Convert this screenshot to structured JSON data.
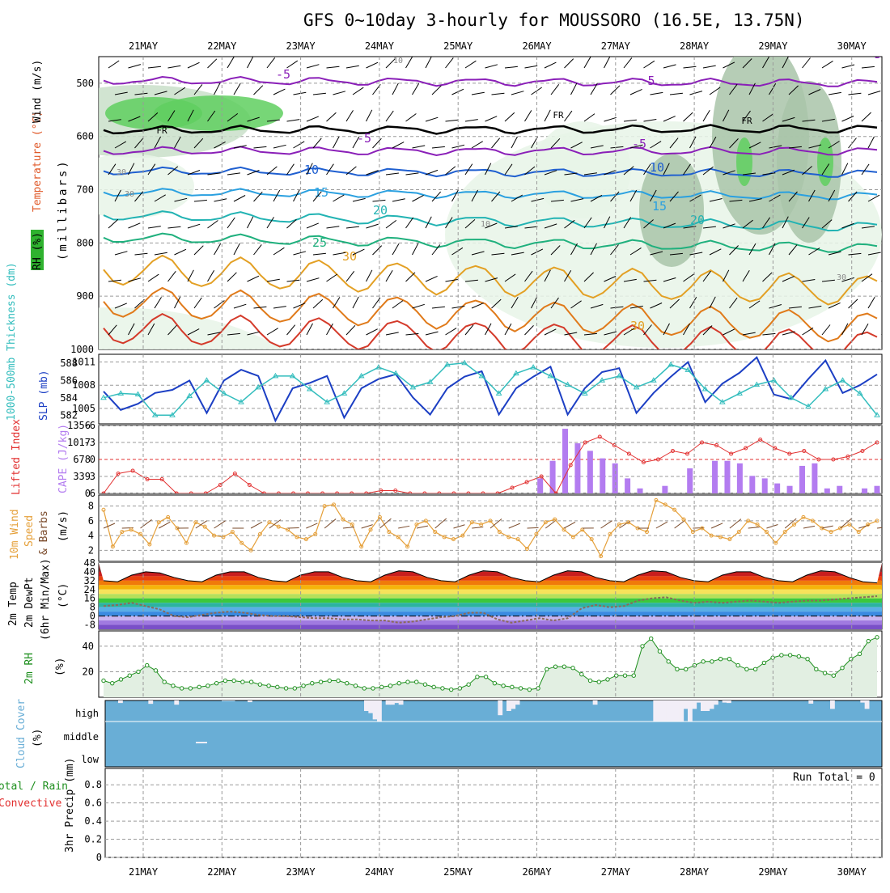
{
  "title": "GFS 0~10day 3-hourly for MOUSSORO (16.5E, 13.75N)",
  "dates": [
    "21MAY",
    "22MAY",
    "23MAY",
    "24MAY",
    "25MAY",
    "26MAY",
    "27MAY",
    "28MAY",
    "29MAY",
    "30MAY"
  ],
  "panel_labels": {
    "p1": {
      "rh": "RH (%)",
      "temp": "Temperature (°C)",
      "wind": "Wind (m/s)",
      "mb": "(millibars)"
    },
    "p2": {
      "thk": "1000-500mb Thickness (dm)",
      "slp": "SLP (mb)"
    },
    "p3": {
      "li": "Lifted Index",
      "cape": "CAPE (J/kg)"
    },
    "p4": {
      "a": "10m Wind",
      "b": "Speed",
      "c": "& Barbs",
      "d": "(m/s)"
    },
    "p5": {
      "a": "2m Temp",
      "b": "2m DewPt",
      "c": "(6hr Min/Max)",
      "d": "(°C)"
    },
    "p6": {
      "a": "2m RH",
      "b": "(%)"
    },
    "p7": {
      "a": "Cloud Cover",
      "b": "(%)"
    },
    "p8": {
      "a": "Total / Rain",
      "b": "Convective",
      "c": "3hr Precip (mm)",
      "run_total": "Run Total = 0"
    }
  },
  "colors": {
    "slp": "#1c3fc4",
    "thickness": "#33bdbd",
    "li": "#e23030",
    "cape": "#b37cf0",
    "wind_speed": "#e5a03a",
    "rh2m": "#1e8f1e",
    "cloud": "#69aed6",
    "temp_line": "#000000"
  },
  "chart_data": [
    {
      "type": "line",
      "name": "upper-air",
      "ylabel": "(millibars)",
      "y_ticks": [
        500,
        600,
        700,
        800,
        900,
        1000
      ],
      "ylim": [
        450,
        1000
      ],
      "isotherm_labels": [
        "-5",
        "-5",
        "-5",
        "5",
        "5",
        "FR",
        "FR",
        "FR",
        "10",
        "10",
        "15",
        "15",
        "20",
        "20",
        "25",
        "30",
        "30",
        "10",
        "10",
        "30",
        "30",
        "30"
      ],
      "isotherms": [
        {
          "t": -5,
          "color": "#8a1fb8",
          "p": [
            495,
            500
          ]
        },
        {
          "t": 0,
          "color": "#000000",
          "p": [
            588,
            586
          ]
        },
        {
          "t": 5,
          "color": "#8a1fb8",
          "p": [
            627,
            628
          ]
        },
        {
          "t": 10,
          "color": "#1f5fd0",
          "p": [
            665,
            670
          ]
        },
        {
          "t": 15,
          "color": "#2aa0e0",
          "p": [
            705,
            712
          ]
        },
        {
          "t": 20,
          "color": "#22b3b3",
          "p": [
            748,
            770
          ]
        },
        {
          "t": 25,
          "color": "#1fb07d",
          "p": [
            790,
            810
          ]
        },
        {
          "t": 30,
          "color": "#e3a024",
          "p": [
            850,
            890
          ]
        },
        {
          "t": 35,
          "color": "#e07a1a",
          "p": [
            910,
            960
          ]
        },
        {
          "t": 40,
          "color": "#d43a2a",
          "p": [
            960,
            995
          ]
        }
      ]
    },
    {
      "type": "line",
      "name": "slp-thickness",
      "series": [
        {
          "name": "SLP (mb)",
          "axis_ticks": [
            1005,
            1008,
            1011
          ],
          "values": [
            1007.2,
            1004.8,
            1005.6,
            1007.0,
            1007.4,
            1008.6,
            1004.4,
            1008.6,
            1010.0,
            1009.2,
            1003.4,
            1007.6,
            1008.3,
            1009.2,
            1003.8,
            1007.6,
            1008.8,
            1009.4,
            1006.4,
            1004.2,
            1007.6,
            1009.1,
            1009.8,
            1004.2,
            1007.6,
            1009.1,
            1010.4,
            1004.2,
            1007.6,
            1009.7,
            1010.2,
            1004.4,
            1007.0,
            1009.1,
            1011.0,
            1005.8,
            1008.2,
            1009.6,
            1011.6,
            1006.8,
            1006.2,
            1008.8,
            1011.2,
            1007.0,
            1008.0,
            1009.4
          ]
        },
        {
          "name": "1000-500mb Thickness (dm)",
          "axis_ticks": [
            582,
            584,
            586,
            588
          ],
          "values": [
            584,
            584.5,
            584.4,
            582,
            582,
            584.2,
            586,
            584.5,
            583.5,
            585.2,
            586.5,
            586.5,
            585,
            583.5,
            584.5,
            586.5,
            587.5,
            586.8,
            585.2,
            585.8,
            587.8,
            588,
            586.5,
            584.5,
            586.8,
            587.5,
            586.5,
            585.5,
            584.5,
            586,
            586.5,
            585.2,
            586,
            587.8,
            587.2,
            585,
            583.5,
            584.5,
            585.5,
            586,
            584,
            583,
            585,
            586,
            584.5,
            582
          ]
        }
      ]
    },
    {
      "type": "bar",
      "name": "li-cape",
      "series": [
        {
          "name": "Lifted Index",
          "axis_ticks": [
            -6,
            -3,
            0,
            3,
            6
          ],
          "values": [
            6,
            2.5,
            2,
            3.5,
            3.5,
            6,
            6,
            6,
            4.5,
            2.5,
            4.5,
            6,
            6,
            6,
            6,
            6,
            6,
            6,
            6,
            5.5,
            5.5,
            6,
            6,
            6,
            6,
            6,
            6,
            6,
            5,
            4,
            3,
            6,
            1,
            -3,
            -4,
            -2.5,
            -1,
            0.5,
            0,
            -1.5,
            -1,
            -3,
            -2.5,
            -1,
            -2,
            -3.5,
            -2,
            -1,
            -1.5,
            0,
            0,
            -0.5,
            -1.5,
            -3
          ]
        },
        {
          "name": "CAPE (J/kg)",
          "axis_ticks": [
            0,
            339,
            678,
            1017,
            1356
          ],
          "values": [
            0,
            0,
            0,
            0,
            0,
            0,
            0,
            0,
            0,
            0,
            0,
            0,
            0,
            0,
            0,
            0,
            0,
            0,
            0,
            0,
            0,
            0,
            0,
            0,
            0,
            0,
            0,
            0,
            0,
            0,
            0,
            0,
            0,
            0,
            0,
            300,
            650,
            1290,
            1000,
            850,
            700,
            600,
            300,
            100,
            0,
            150,
            0,
            500,
            0,
            650,
            650,
            600,
            350,
            300,
            200,
            150,
            550,
            600,
            100,
            150,
            0,
            100,
            150
          ]
        }
      ]
    },
    {
      "type": "line",
      "name": "10m-wind",
      "ylabel": "(m/s)",
      "y_ticks": [
        2,
        4,
        6,
        8
      ],
      "series": [
        {
          "name": "10m Wind Speed",
          "values": [
            7.5,
            2.5,
            4.5,
            4.8,
            4.2,
            2.8,
            5.8,
            6.5,
            5.0,
            3.0,
            5.8,
            5.2,
            4.0,
            3.8,
            4.5,
            3.0,
            2.0,
            4.2,
            5.8,
            5.2,
            4.8,
            3.8,
            3.5,
            4.2,
            8.0,
            8.2,
            6.2,
            5.5,
            2.5,
            4.8,
            6.5,
            4.5,
            3.8,
            2.5,
            5.5,
            6.0,
            4.5,
            3.8,
            3.5,
            4.0,
            5.8,
            5.5,
            6.0,
            4.5,
            3.8,
            3.5,
            2.2,
            4.2,
            5.8,
            6.2,
            4.8,
            3.8,
            4.8,
            3.5,
            1.2,
            4.2,
            5.5,
            5.8,
            5.0,
            4.5,
            8.8,
            8.2,
            7.5,
            6.2,
            4.5,
            5.0,
            4.0,
            3.8,
            3.5,
            4.5,
            6.0,
            5.5,
            4.5,
            3.0,
            4.5,
            5.5,
            6.5,
            6.0,
            5.0,
            4.5,
            5.0,
            5.5,
            4.5,
            5.5,
            6.0
          ]
        }
      ]
    },
    {
      "type": "area",
      "name": "2m-temp",
      "ylabel": "(°C)",
      "y_ticks": [
        -8,
        0,
        8,
        16,
        24,
        32,
        40,
        48
      ],
      "series": [
        {
          "name": "2m Temp",
          "values": [
            32,
            31,
            37,
            40,
            39,
            35,
            32,
            31,
            37,
            40,
            40,
            35,
            32,
            31,
            37,
            40,
            40,
            35,
            32,
            31,
            37,
            41,
            40,
            35,
            32,
            31,
            37,
            41,
            40,
            35,
            32,
            31,
            37,
            41,
            40,
            35,
            32,
            31,
            37,
            41,
            40,
            35,
            32,
            31,
            37,
            40,
            40,
            35,
            32,
            31,
            37,
            41,
            40,
            35,
            31,
            30
          ]
        },
        {
          "name": "2m DewPt",
          "values": [
            9,
            10,
            12,
            9,
            6,
            0,
            -1,
            1,
            3,
            4,
            3,
            1,
            0,
            0,
            -1,
            -2,
            -2,
            -3,
            -3,
            -4,
            -4,
            -6,
            -5,
            -3,
            -1,
            0,
            3,
            3,
            -3,
            -6,
            -4,
            -2,
            -4,
            -2,
            7,
            10,
            8,
            9,
            14,
            16,
            17,
            14,
            12,
            13,
            12,
            13,
            14,
            13,
            12,
            13,
            14,
            14,
            15,
            16,
            17,
            18
          ]
        }
      ]
    },
    {
      "type": "area",
      "name": "2m-rh",
      "ylabel": "(%)",
      "y_ticks": [
        20,
        40
      ],
      "series": [
        {
          "name": "2m RH",
          "values": [
            13,
            11,
            14,
            17,
            20,
            25,
            21,
            12,
            9,
            7,
            7,
            8,
            9,
            11,
            13,
            13,
            12,
            12,
            10,
            9,
            8,
            7,
            7,
            9,
            11,
            12,
            13,
            13,
            11,
            9,
            7,
            7,
            8,
            9,
            11,
            12,
            12,
            10,
            8,
            7,
            6,
            7,
            10,
            16,
            16,
            11,
            9,
            8,
            7,
            6,
            7,
            22,
            24,
            24,
            23,
            18,
            13,
            12,
            14,
            17,
            17,
            17,
            40,
            46,
            36,
            28,
            22,
            22,
            25,
            28,
            28,
            30,
            30,
            25,
            22,
            22,
            27,
            31,
            33,
            33,
            32,
            30,
            22,
            19,
            17,
            23,
            30,
            34,
            44,
            47
          ]
        }
      ]
    },
    {
      "type": "bar",
      "name": "cloud-cover",
      "categories": [
        "high",
        "middle",
        "low"
      ],
      "high": [
        0,
        0,
        0,
        12,
        0,
        0,
        0,
        0,
        0,
        0,
        16,
        0,
        0,
        0,
        0,
        0,
        20,
        0,
        0,
        0,
        0,
        0,
        0,
        0,
        0,
        0,
        0,
        2,
        2,
        2,
        0,
        0,
        0,
        8,
        0,
        0,
        0,
        0,
        0,
        0,
        0,
        0,
        0,
        0,
        0,
        0,
        0,
        0,
        0,
        0,
        0,
        0,
        0,
        0,
        0,
        0,
        0,
        0,
        0,
        0,
        50,
        60,
        90,
        100,
        0,
        20,
        20,
        12,
        20,
        0,
        0,
        0,
        0,
        0,
        0,
        0,
        0,
        0,
        0,
        0,
        0,
        0,
        0,
        0,
        0,
        0,
        0,
        0,
        0,
        0,
        0,
        70,
        0,
        50,
        40,
        20,
        0,
        0,
        0,
        0,
        0,
        0,
        0,
        0,
        0,
        0,
        0,
        0,
        0,
        0,
        0,
        0,
        0,
        20,
        0,
        0,
        0,
        0,
        0,
        0,
        0,
        0,
        0,
        0,
        0,
        0,
        0,
        100,
        100,
        100,
        100,
        100,
        100,
        100,
        40,
        100,
        40,
        10,
        50,
        50,
        40,
        20,
        0,
        10,
        12,
        0,
        0,
        0,
        0,
        0,
        0,
        0,
        0,
        0,
        0,
        0,
        0,
        0,
        0,
        0,
        0,
        0,
        0,
        15,
        0,
        0,
        0,
        0,
        40,
        0,
        0,
        0,
        0,
        0,
        0,
        10,
        40,
        0,
        0,
        0
      ],
      "middle_note": "sparse"
    },
    {
      "type": "bar",
      "name": "precip",
      "ylabel": "3hr Precip (mm)",
      "y_ticks": [
        0,
        0.2,
        0.4,
        0.6,
        0.8
      ],
      "values": []
    }
  ]
}
